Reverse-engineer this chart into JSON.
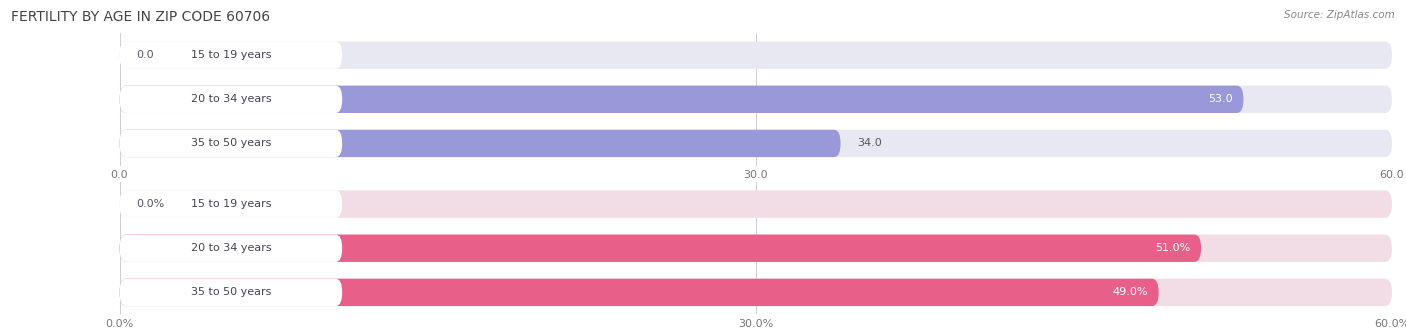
{
  "title": "FERTILITY BY AGE IN ZIP CODE 60706",
  "source_text": "Source: ZipAtlas.com",
  "top_section": {
    "categories": [
      "15 to 19 years",
      "20 to 34 years",
      "35 to 50 years"
    ],
    "values": [
      0.0,
      53.0,
      34.0
    ],
    "bar_color": "#9999d9",
    "bg_color": "#e8e8f2",
    "xlim": [
      0,
      60
    ],
    "xticks": [
      0.0,
      30.0,
      60.0
    ],
    "xtick_labels": [
      "0.0",
      "30.0",
      "60.0"
    ],
    "value_inside": [
      false,
      true,
      false
    ]
  },
  "bottom_section": {
    "categories": [
      "15 to 19 years",
      "20 to 34 years",
      "35 to 50 years"
    ],
    "values": [
      0.0,
      51.0,
      49.0
    ],
    "bar_color": "#e8608a",
    "bg_color": "#f2dde6",
    "xlim": [
      0,
      60
    ],
    "xticks": [
      0.0,
      30.0,
      60.0
    ],
    "xtick_labels": [
      "0.0%",
      "30.0%",
      "60.0%"
    ],
    "value_inside": [
      false,
      true,
      true
    ]
  },
  "bar_height": 0.62,
  "label_fontsize": 8,
  "value_fontsize": 8,
  "title_fontsize": 10,
  "source_fontsize": 7.5,
  "fig_width": 14.06,
  "fig_height": 3.31,
  "fig_dpi": 100
}
